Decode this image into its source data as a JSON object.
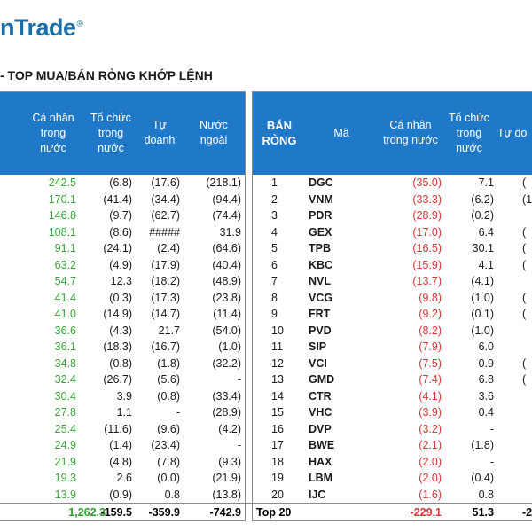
{
  "logo": {
    "text": "nTrade",
    "mark": "®"
  },
  "title": "- TOP MUA/BÁN RÒNG KHỚP LỆNH",
  "left_headers": [
    "Cá nhân\ntrong\nnước",
    "Tổ chức\ntrong\nnước",
    "Tự\ndoanh",
    "Nước\nngoài"
  ],
  "right_headers": [
    "BÁN\nRÒNG",
    "Mã",
    "Cá nhân\ntrong nước",
    "Tổ chức\ntrong\nnước",
    "Tự do"
  ],
  "left_rows": [
    [
      "242.5",
      "(6.8)",
      "(17.6)",
      "(218.1)"
    ],
    [
      "170.1",
      "(41.4)",
      "(34.4)",
      "(94.4)"
    ],
    [
      "146.8",
      "(9.7)",
      "(62.7)",
      "(74.4)"
    ],
    [
      "108.1",
      "(8.6)",
      "#####",
      "31.9"
    ],
    [
      "91.1",
      "(24.1)",
      "(2.4)",
      "(64.6)"
    ],
    [
      "63.2",
      "(4.9)",
      "(17.9)",
      "(40.4)"
    ],
    [
      "54.7",
      "12.3",
      "(18.2)",
      "(48.9)"
    ],
    [
      "41.4",
      "(0.3)",
      "(17.3)",
      "(23.8)"
    ],
    [
      "41.0",
      "(14.9)",
      "(14.7)",
      "(11.4)"
    ],
    [
      "36.6",
      "(4.3)",
      "21.7",
      "(54.0)"
    ],
    [
      "36.1",
      "(18.3)",
      "(16.7)",
      "(1.0)"
    ],
    [
      "34.8",
      "(0.8)",
      "(1.8)",
      "(32.2)"
    ],
    [
      "32.4",
      "(26.7)",
      "(5.6)",
      "-"
    ],
    [
      "30.4",
      "3.9",
      "(0.8)",
      "(33.4)"
    ],
    [
      "27.8",
      "1.1",
      "-",
      "(28.9)"
    ],
    [
      "25.4",
      "(11.6)",
      "(9.6)",
      "(4.2)"
    ],
    [
      "24.9",
      "(1.4)",
      "(23.4)",
      "-"
    ],
    [
      "21.9",
      "(4.8)",
      "(7.8)",
      "(9.3)"
    ],
    [
      "19.3",
      "2.6",
      "(0.0)",
      "(21.9)"
    ],
    [
      "13.9",
      "(0.9)",
      "0.8",
      "(13.8)"
    ]
  ],
  "right_rows": [
    [
      "1",
      "DGC",
      "(35.0)",
      "7.1",
      "("
    ],
    [
      "2",
      "VNM",
      "(33.3)",
      "(6.2)",
      "(1"
    ],
    [
      "3",
      "PDR",
      "(28.9)",
      "(0.2)",
      ""
    ],
    [
      "4",
      "GEX",
      "(17.0)",
      "6.4",
      "("
    ],
    [
      "5",
      "TPB",
      "(16.5)",
      "30.1",
      "("
    ],
    [
      "6",
      "KBC",
      "(15.9)",
      "4.1",
      "("
    ],
    [
      "7",
      "NVL",
      "(13.7)",
      "(4.1)",
      ""
    ],
    [
      "8",
      "VCG",
      "(9.8)",
      "(1.0)",
      "("
    ],
    [
      "9",
      "FRT",
      "(9.2)",
      "(0.1)",
      "("
    ],
    [
      "10",
      "PVD",
      "(8.2)",
      "(1.0)",
      ""
    ],
    [
      "11",
      "SIP",
      "(7.9)",
      "6.0",
      ""
    ],
    [
      "12",
      "VCI",
      "(7.5)",
      "0.9",
      "("
    ],
    [
      "13",
      "GMD",
      "(7.4)",
      "6.8",
      "("
    ],
    [
      "14",
      "CTR",
      "(4.1)",
      "3.6",
      ""
    ],
    [
      "15",
      "VHC",
      "(3.9)",
      "0.4",
      ""
    ],
    [
      "16",
      "DVP",
      "(3.2)",
      "-",
      ""
    ],
    [
      "17",
      "BWE",
      "(2.1)",
      "(1.8)",
      ""
    ],
    [
      "18",
      "HAX",
      "(2.0)",
      "-",
      ""
    ],
    [
      "19",
      "LBM",
      "(2.0)",
      "(0.4)",
      ""
    ],
    [
      "20",
      "IJC",
      "(1.6)",
      "0.8",
      ""
    ]
  ],
  "totals_left": [
    "1,262.3",
    "-159.5",
    "-359.9",
    "-742.9"
  ],
  "totals_right": [
    "Top 20",
    "-229.1",
    "51.3",
    "-2"
  ]
}
